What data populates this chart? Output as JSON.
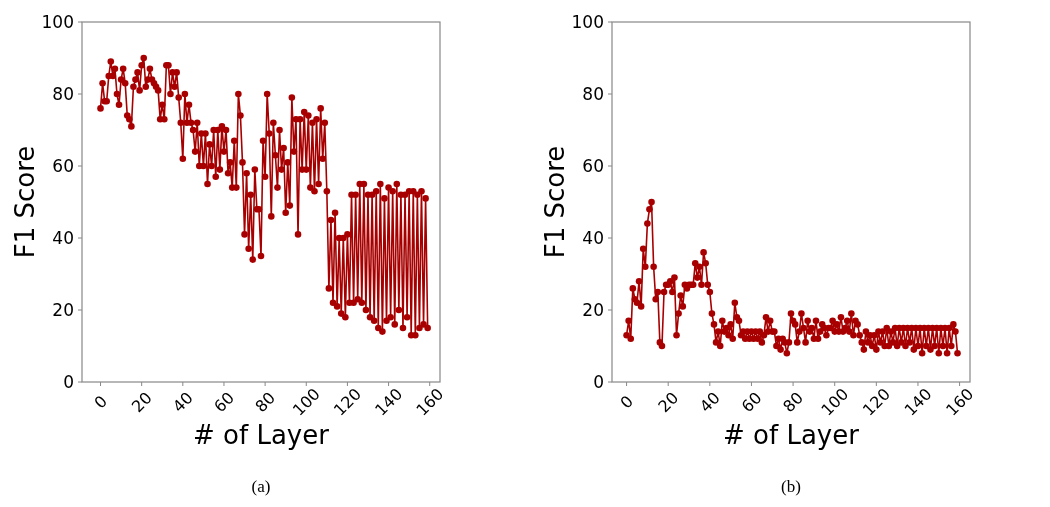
{
  "chart_data": [
    {
      "type": "line",
      "title": "(a)",
      "xlabel": "# of Layer",
      "ylabel": "F1 Score",
      "marker": "circle",
      "xlim": [
        -9,
        165
      ],
      "ylim": [
        0,
        100
      ],
      "xticks": [
        0,
        20,
        40,
        60,
        80,
        100,
        120,
        140,
        160
      ],
      "yticks": [
        0,
        20,
        40,
        60,
        80,
        100
      ],
      "series": [
        {
          "color": "#a80000",
          "x": [
            0,
            1,
            2,
            3,
            4,
            5,
            6,
            7,
            8,
            9,
            10,
            11,
            12,
            13,
            14,
            15,
            16,
            17,
            18,
            19,
            20,
            21,
            22,
            23,
            24,
            25,
            26,
            27,
            28,
            29,
            30,
            31,
            32,
            33,
            34,
            35,
            36,
            37,
            38,
            39,
            40,
            41,
            42,
            43,
            44,
            45,
            46,
            47,
            48,
            49,
            50,
            51,
            52,
            53,
            54,
            55,
            56,
            57,
            58,
            59,
            60,
            61,
            62,
            63,
            64,
            65,
            66,
            67,
            68,
            69,
            70,
            71,
            72,
            73,
            74,
            75,
            76,
            77,
            78,
            79,
            80,
            81,
            82,
            83,
            84,
            85,
            86,
            87,
            88,
            89,
            90,
            91,
            92,
            93,
            94,
            95,
            96,
            97,
            98,
            99,
            100,
            101,
            102,
            103,
            104,
            105,
            106,
            107,
            108,
            109,
            110,
            111,
            112,
            113,
            114,
            115,
            116,
            117,
            118,
            119,
            120,
            121,
            122,
            123,
            124,
            125,
            126,
            127,
            128,
            129,
            130,
            131,
            132,
            133,
            134,
            135,
            136,
            137,
            138,
            139,
            140,
            141,
            142,
            143,
            144,
            145,
            146,
            147,
            148,
            149,
            150,
            151,
            152,
            153,
            154,
            155,
            156,
            157,
            158,
            159
          ],
          "values": [
            76,
            83,
            78,
            78,
            85,
            89,
            85,
            87,
            80,
            77,
            84,
            87,
            83,
            74,
            73,
            71,
            82,
            84,
            86,
            81,
            88,
            90,
            82,
            84,
            87,
            84,
            83,
            82,
            81,
            73,
            77,
            73,
            88,
            88,
            80,
            86,
            82,
            86,
            79,
            72,
            62,
            80,
            72,
            77,
            72,
            70,
            64,
            72,
            60,
            69,
            60,
            69,
            55,
            66,
            60,
            70,
            57,
            70,
            59,
            71,
            64,
            70,
            58,
            61,
            54,
            67,
            54,
            80,
            74,
            61,
            41,
            58,
            37,
            52,
            34,
            59,
            48,
            48,
            35,
            67,
            57,
            80,
            69,
            46,
            72,
            63,
            54,
            70,
            59,
            65,
            47,
            61,
            49,
            79,
            64,
            73,
            41,
            73,
            59,
            75,
            59,
            74,
            54,
            72,
            53,
            73,
            55,
            76,
            62,
            72,
            53,
            26,
            45,
            22,
            47,
            21,
            40,
            19,
            40,
            18,
            41,
            22,
            52,
            22,
            52,
            23,
            55,
            22,
            55,
            20,
            52,
            18,
            52,
            17,
            53,
            15,
            55,
            14,
            51,
            17,
            54,
            18,
            53,
            16,
            55,
            20,
            52,
            15,
            52,
            18,
            53,
            13,
            53,
            13,
            52,
            15,
            53,
            16,
            51,
            15
          ]
        }
      ]
    },
    {
      "type": "line",
      "title": "(b)",
      "xlabel": "# of Layer",
      "ylabel": "F1 Score",
      "marker": "circle",
      "xlim": [
        -7,
        165
      ],
      "ylim": [
        0,
        100
      ],
      "xticks": [
        0,
        20,
        40,
        60,
        80,
        100,
        120,
        140,
        160
      ],
      "yticks": [
        0,
        20,
        40,
        60,
        80,
        100
      ],
      "series": [
        {
          "color": "#a80000",
          "x": [
            0,
            1,
            2,
            3,
            4,
            5,
            6,
            7,
            8,
            9,
            10,
            11,
            12,
            13,
            14,
            15,
            16,
            17,
            18,
            19,
            20,
            21,
            22,
            23,
            24,
            25,
            26,
            27,
            28,
            29,
            30,
            31,
            32,
            33,
            34,
            35,
            36,
            37,
            38,
            39,
            40,
            41,
            42,
            43,
            44,
            45,
            46,
            47,
            48,
            49,
            50,
            51,
            52,
            53,
            54,
            55,
            56,
            57,
            58,
            59,
            60,
            61,
            62,
            63,
            64,
            65,
            66,
            67,
            68,
            69,
            70,
            71,
            72,
            73,
            74,
            75,
            76,
            77,
            78,
            79,
            80,
            81,
            82,
            83,
            84,
            85,
            86,
            87,
            88,
            89,
            90,
            91,
            92,
            93,
            94,
            95,
            96,
            97,
            98,
            99,
            100,
            101,
            102,
            103,
            104,
            105,
            106,
            107,
            108,
            109,
            110,
            111,
            112,
            113,
            114,
            115,
            116,
            117,
            118,
            119,
            120,
            121,
            122,
            123,
            124,
            125,
            126,
            127,
            128,
            129,
            130,
            131,
            132,
            133,
            134,
            135,
            136,
            137,
            138,
            139,
            140,
            141,
            142,
            143,
            144,
            145,
            146,
            147,
            148,
            149,
            150,
            151,
            152,
            153,
            154,
            155,
            156,
            157,
            158,
            159
          ],
          "values": [
            13,
            17,
            12,
            26,
            23,
            22,
            28,
            21,
            37,
            32,
            44,
            48,
            50,
            32,
            23,
            25,
            11,
            10,
            25,
            27,
            27,
            28,
            25,
            29,
            13,
            19,
            24,
            21,
            27,
            26,
            27,
            27,
            27,
            33,
            29,
            32,
            27,
            36,
            33,
            27,
            25,
            19,
            16,
            11,
            14,
            10,
            17,
            14,
            15,
            13,
            16,
            12,
            22,
            18,
            17,
            13,
            14,
            12,
            14,
            12,
            14,
            12,
            14,
            12,
            14,
            11,
            13,
            18,
            14,
            17,
            14,
            14,
            10,
            12,
            9,
            12,
            11,
            8,
            11,
            19,
            17,
            16,
            11,
            14,
            19,
            15,
            11,
            17,
            14,
            15,
            12,
            17,
            12,
            14,
            16,
            15,
            13,
            15,
            15,
            17,
            14,
            16,
            14,
            18,
            14,
            15,
            17,
            14,
            19,
            13,
            17,
            16,
            13,
            11,
            9,
            14,
            11,
            13,
            10,
            13,
            9,
            14,
            11,
            14,
            10,
            15,
            10,
            14,
            11,
            15,
            10,
            15,
            11,
            15,
            10,
            15,
            11,
            15,
            9,
            15,
            10,
            15,
            8,
            15,
            10,
            15,
            9,
            15,
            10,
            15,
            8,
            15,
            10,
            15,
            8,
            15,
            10,
            16,
            14,
            8
          ]
        }
      ]
    }
  ]
}
